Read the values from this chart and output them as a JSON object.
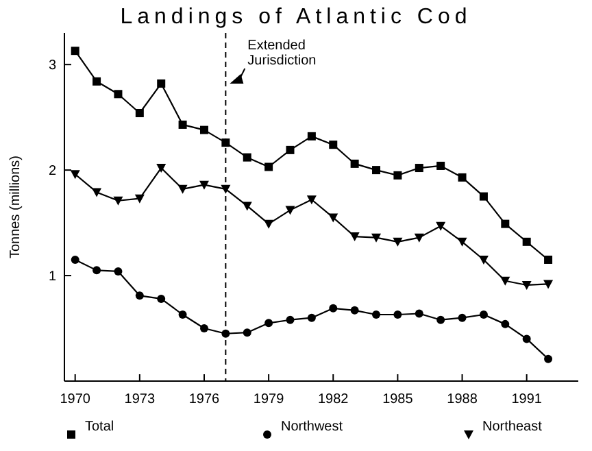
{
  "chart_data": {
    "type": "line",
    "title": "Landings of Atlantic Cod",
    "ylabel": "Tonnes (millions)",
    "x": [
      1970,
      1971,
      1972,
      1973,
      1974,
      1975,
      1976,
      1977,
      1978,
      1979,
      1980,
      1981,
      1982,
      1983,
      1984,
      1985,
      1986,
      1987,
      1988,
      1989,
      1990,
      1991,
      1992
    ],
    "series": [
      {
        "name": "Total",
        "color": "#000000",
        "marker": "square",
        "values": [
          3.13,
          2.84,
          2.72,
          2.54,
          2.82,
          2.43,
          2.38,
          2.26,
          2.12,
          2.03,
          2.19,
          2.32,
          2.24,
          2.06,
          2.0,
          1.95,
          2.02,
          2.04,
          1.93,
          1.75,
          1.49,
          1.32,
          1.15
        ]
      },
      {
        "name": "Northwest",
        "color": "#000000",
        "marker": "circle",
        "values": [
          1.15,
          1.05,
          1.04,
          0.81,
          0.78,
          0.63,
          0.5,
          0.45,
          0.46,
          0.55,
          0.58,
          0.6,
          0.69,
          0.67,
          0.63,
          0.63,
          0.64,
          0.58,
          0.6,
          0.63,
          0.54,
          0.4,
          0.21
        ]
      },
      {
        "name": "Northeast",
        "color": "#000000",
        "marker": "triangle",
        "values": [
          1.96,
          1.79,
          1.71,
          1.73,
          2.02,
          1.82,
          1.86,
          1.82,
          1.66,
          1.49,
          1.62,
          1.72,
          1.55,
          1.37,
          1.36,
          1.32,
          1.36,
          1.47,
          1.32,
          1.15,
          0.95,
          0.91,
          0.92
        ]
      }
    ],
    "xlim": [
      1969.5,
      1993.4
    ],
    "xticks": [
      1970,
      1973,
      1976,
      1979,
      1982,
      1985,
      1988,
      1991
    ],
    "ylim": [
      0,
      3.3
    ],
    "yticks": [
      1,
      2,
      3
    ],
    "ref_lines": [
      {
        "axis": "x",
        "value": 1977,
        "label": "Extended Jurisdiction",
        "line_style": "dashed"
      }
    ],
    "legend": "bottom",
    "grid": false,
    "line_style": "solid"
  }
}
